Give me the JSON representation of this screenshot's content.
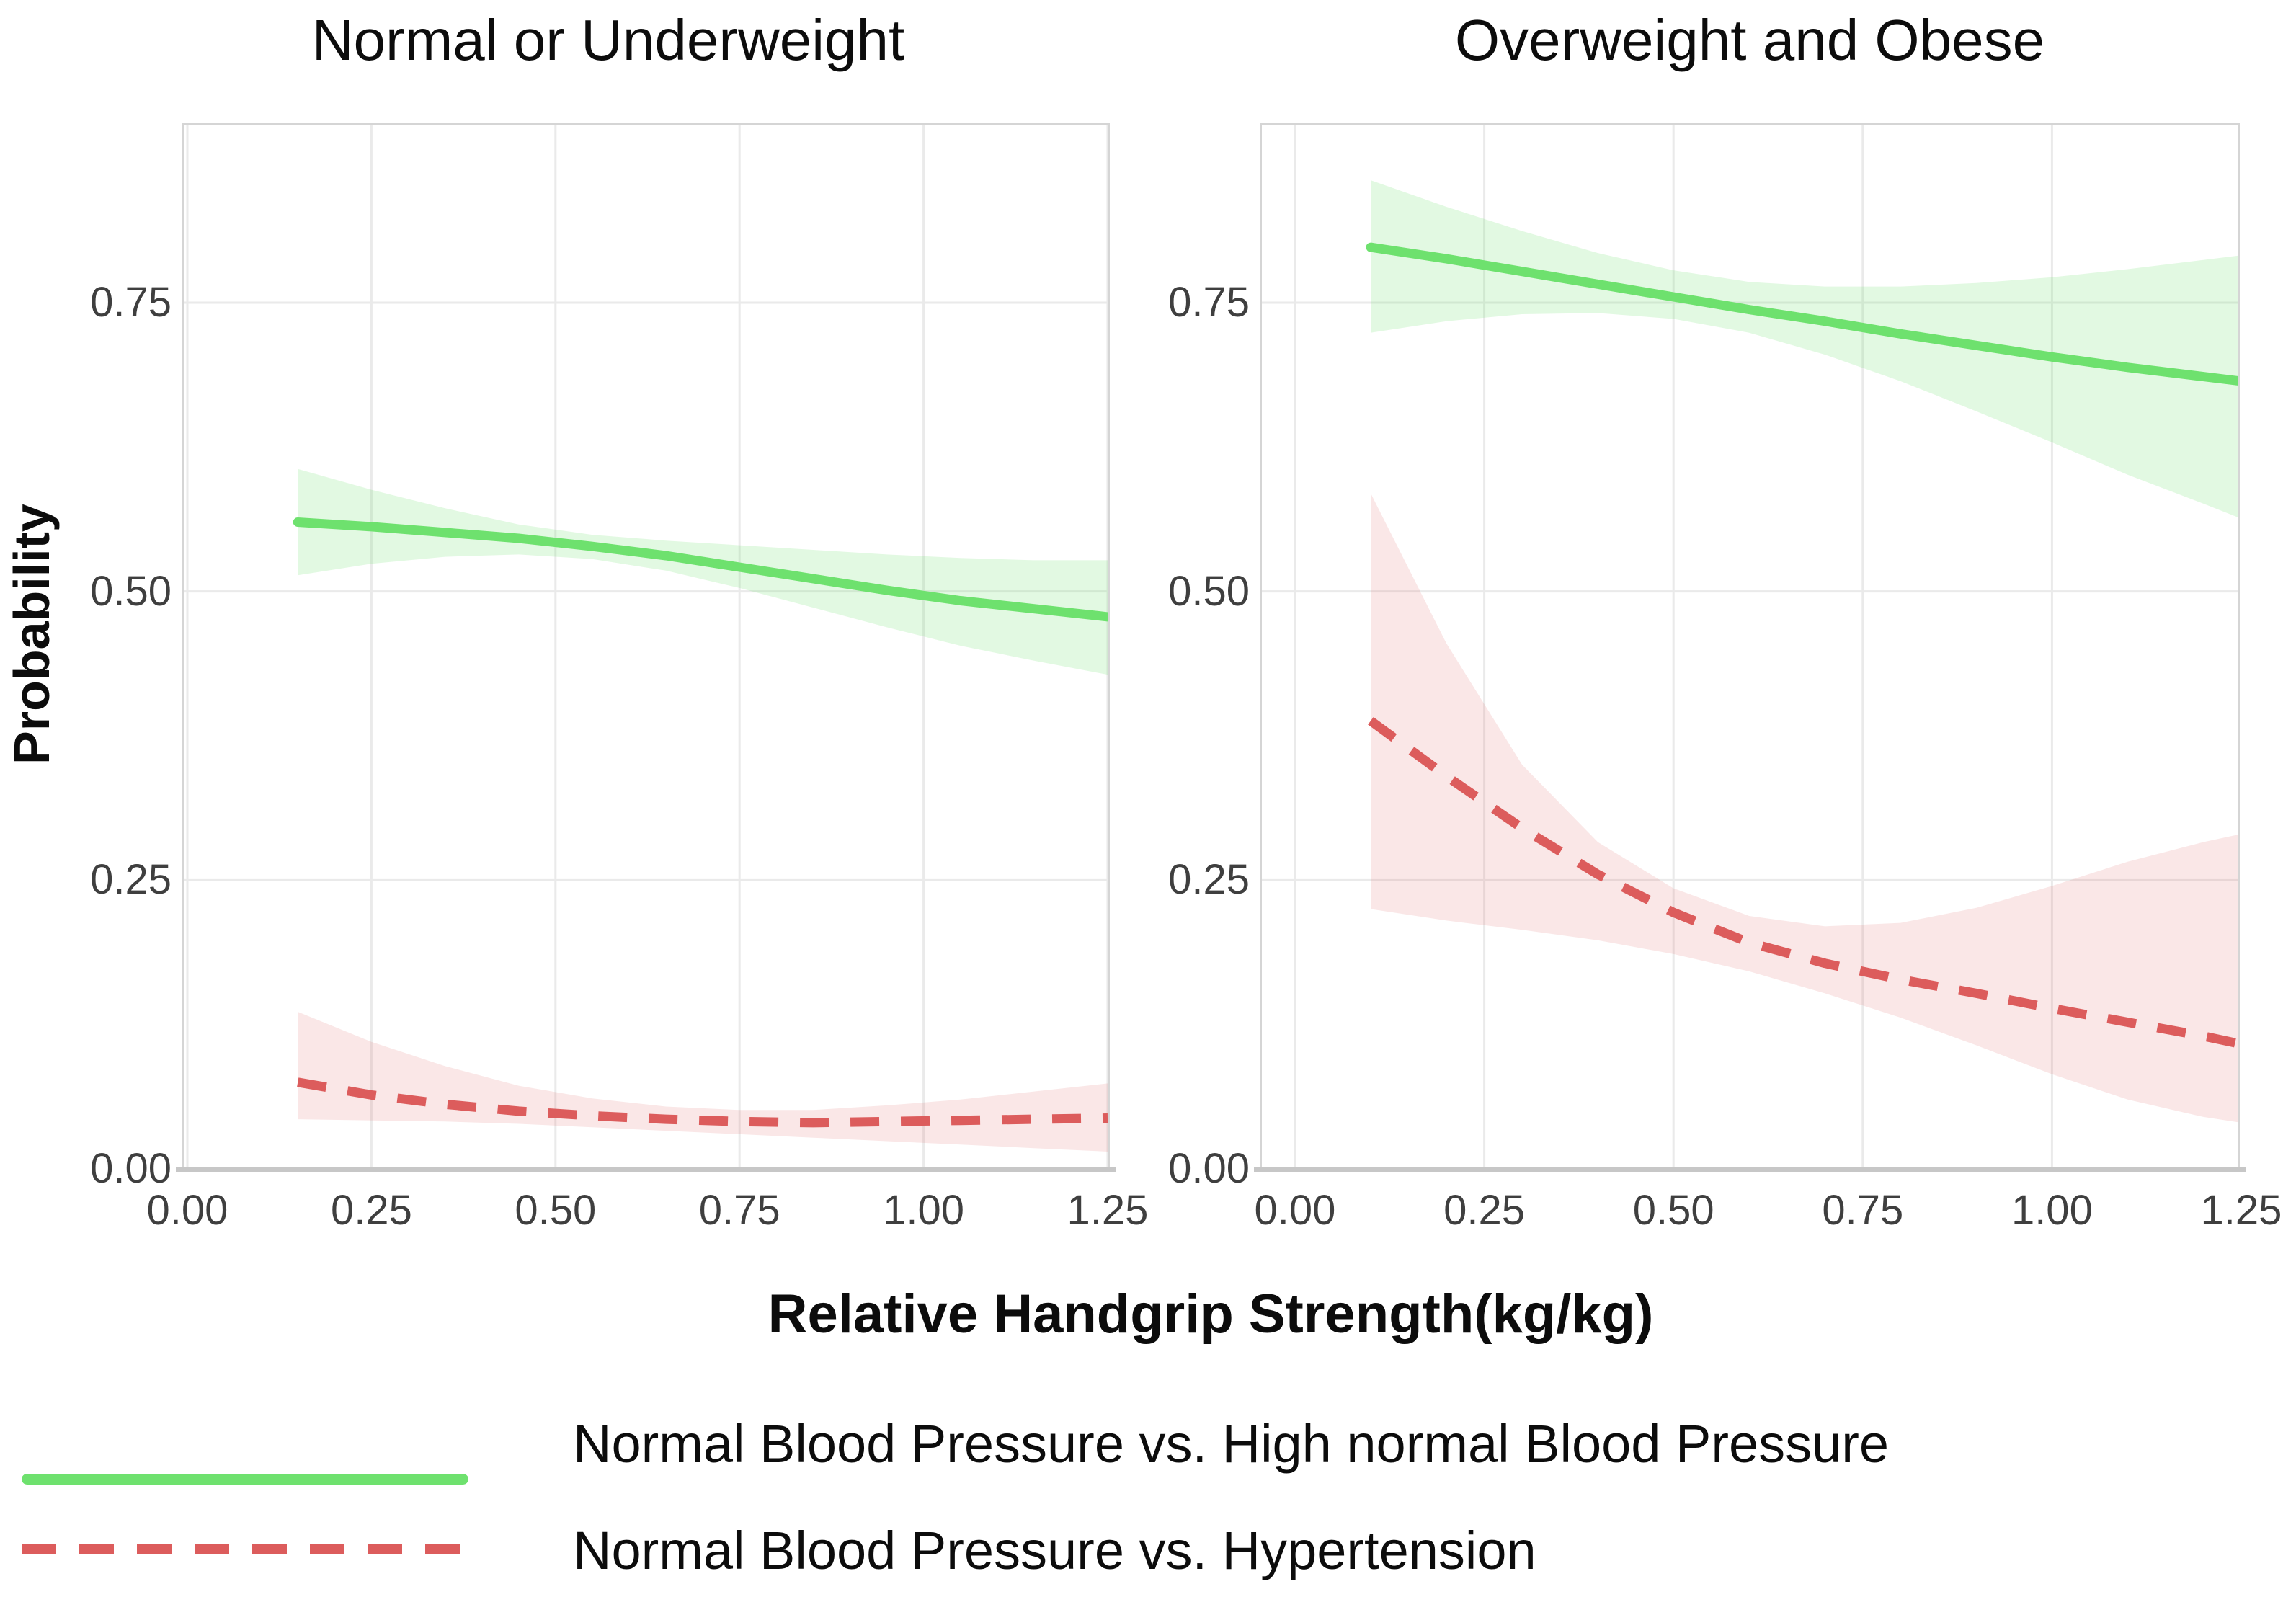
{
  "axes": {
    "x_label": "Relative Handgrip Strength(kg/kg)",
    "y_label": "Probability",
    "x_tick_labels": [
      "0.00",
      "0.25",
      "0.50",
      "0.75",
      "1.00",
      "1.25"
    ],
    "x_tick_values": [
      0,
      0.25,
      0.5,
      0.75,
      1.0,
      1.25
    ],
    "y_tick_labels": [
      "0.00",
      "0.25",
      "0.50",
      "0.75"
    ],
    "y_tick_values": [
      0,
      0.25,
      0.5,
      0.75
    ]
  },
  "legend": {
    "items": [
      {
        "label": "Normal Blood Pressure vs. High normal Blood Pressure",
        "style": "solid",
        "color": "#6EE16E"
      },
      {
        "label": "Normal Blood Pressure vs. Hypertension",
        "style": "dashed",
        "color": "#DC5C5C"
      }
    ]
  },
  "colors": {
    "green_line": "#6EE16E",
    "green_band": "rgba(125,229,125,0.22)",
    "red_line": "#DC5C5C",
    "red_band": "rgba(226,120,120,0.18)",
    "gridline": "#EAEAEA",
    "panel_border": "#D5D5D5",
    "axis_line": "#C7C7C7",
    "tick_text": "#3F3F3F",
    "title_text": "#0C0C0C"
  },
  "chart_data": [
    {
      "type": "line",
      "title": "Normal or Underweight",
      "xlabel": "Relative Handgrip Strength(kg/kg)",
      "ylabel": "Probability",
      "x_domain": [
        0,
        1.25
      ],
      "y_domain": [
        0,
        0.906
      ],
      "grid": true,
      "legend_position": "bottom",
      "series": [
        {
          "name": "Normal Blood Pressure vs. High normal Blood Pressure",
          "style": "solid",
          "color": "#6EE16E",
          "band_color": "rgba(125,229,125,0.22)",
          "x": [
            0.15,
            0.25,
            0.35,
            0.45,
            0.55,
            0.65,
            0.75,
            0.85,
            0.95,
            1.05,
            1.15,
            1.25
          ],
          "y": [
            0.56,
            0.556,
            0.551,
            0.546,
            0.539,
            0.531,
            0.521,
            0.511,
            0.501,
            0.492,
            0.485,
            0.478
          ],
          "band_upper": [
            0.606,
            0.588,
            0.572,
            0.558,
            0.549,
            0.544,
            0.54,
            0.536,
            0.532,
            0.529,
            0.527,
            0.527
          ],
          "band_lower": [
            0.514,
            0.524,
            0.53,
            0.532,
            0.528,
            0.518,
            0.503,
            0.486,
            0.469,
            0.453,
            0.44,
            0.428
          ]
        },
        {
          "name": "Normal Blood Pressure vs. Hypertension",
          "style": "dashed",
          "color": "#DC5C5C",
          "band_color": "rgba(226,120,120,0.18)",
          "x": [
            0.15,
            0.25,
            0.35,
            0.45,
            0.55,
            0.65,
            0.75,
            0.85,
            0.95,
            1.05,
            1.15,
            1.25
          ],
          "y": [
            0.075,
            0.064,
            0.056,
            0.05,
            0.046,
            0.043,
            0.041,
            0.04,
            0.041,
            0.042,
            0.043,
            0.044
          ],
          "band_upper": [
            0.136,
            0.11,
            0.089,
            0.072,
            0.061,
            0.054,
            0.051,
            0.051,
            0.055,
            0.06,
            0.067,
            0.074
          ],
          "band_lower": [
            0.043,
            0.042,
            0.041,
            0.039,
            0.036,
            0.033,
            0.03,
            0.027,
            0.024,
            0.021,
            0.018,
            0.015
          ]
        }
      ]
    },
    {
      "type": "line",
      "title": "Overweight and Obese",
      "xlabel": "Relative Handgrip Strength(kg/kg)",
      "ylabel": "Probability",
      "x_domain": [
        0,
        1.25
      ],
      "y_domain": [
        0,
        0.906
      ],
      "grid": true,
      "legend_position": "bottom",
      "series": [
        {
          "name": "Normal Blood Pressure vs. High normal Blood Pressure",
          "style": "solid",
          "color": "#6EE16E",
          "band_color": "rgba(125,229,125,0.22)",
          "x": [
            0.1,
            0.2,
            0.3,
            0.4,
            0.5,
            0.6,
            0.7,
            0.8,
            0.9,
            1.0,
            1.1,
            1.2,
            1.25
          ],
          "y": [
            0.798,
            0.788,
            0.777,
            0.766,
            0.755,
            0.744,
            0.734,
            0.723,
            0.713,
            0.703,
            0.694,
            0.686,
            0.682
          ],
          "band_upper": [
            0.856,
            0.833,
            0.812,
            0.793,
            0.778,
            0.768,
            0.764,
            0.764,
            0.767,
            0.772,
            0.779,
            0.787,
            0.791
          ],
          "band_lower": [
            0.724,
            0.734,
            0.74,
            0.741,
            0.736,
            0.724,
            0.705,
            0.682,
            0.656,
            0.629,
            0.601,
            0.576,
            0.563
          ]
        },
        {
          "name": "Normal Blood Pressure vs. Hypertension",
          "style": "dashed",
          "color": "#DC5C5C",
          "band_color": "rgba(226,120,120,0.18)",
          "x": [
            0.1,
            0.2,
            0.3,
            0.4,
            0.5,
            0.6,
            0.7,
            0.8,
            0.9,
            1.0,
            1.1,
            1.2,
            1.25
          ],
          "y": [
            0.388,
            0.34,
            0.295,
            0.255,
            0.222,
            0.196,
            0.178,
            0.164,
            0.152,
            0.139,
            0.127,
            0.115,
            0.108
          ],
          "band_upper": [
            0.585,
            0.455,
            0.35,
            0.283,
            0.243,
            0.219,
            0.21,
            0.213,
            0.226,
            0.245,
            0.266,
            0.283,
            0.29
          ],
          "band_lower": [
            0.225,
            0.215,
            0.207,
            0.198,
            0.186,
            0.171,
            0.152,
            0.131,
            0.107,
            0.082,
            0.06,
            0.045,
            0.04
          ]
        }
      ]
    }
  ]
}
